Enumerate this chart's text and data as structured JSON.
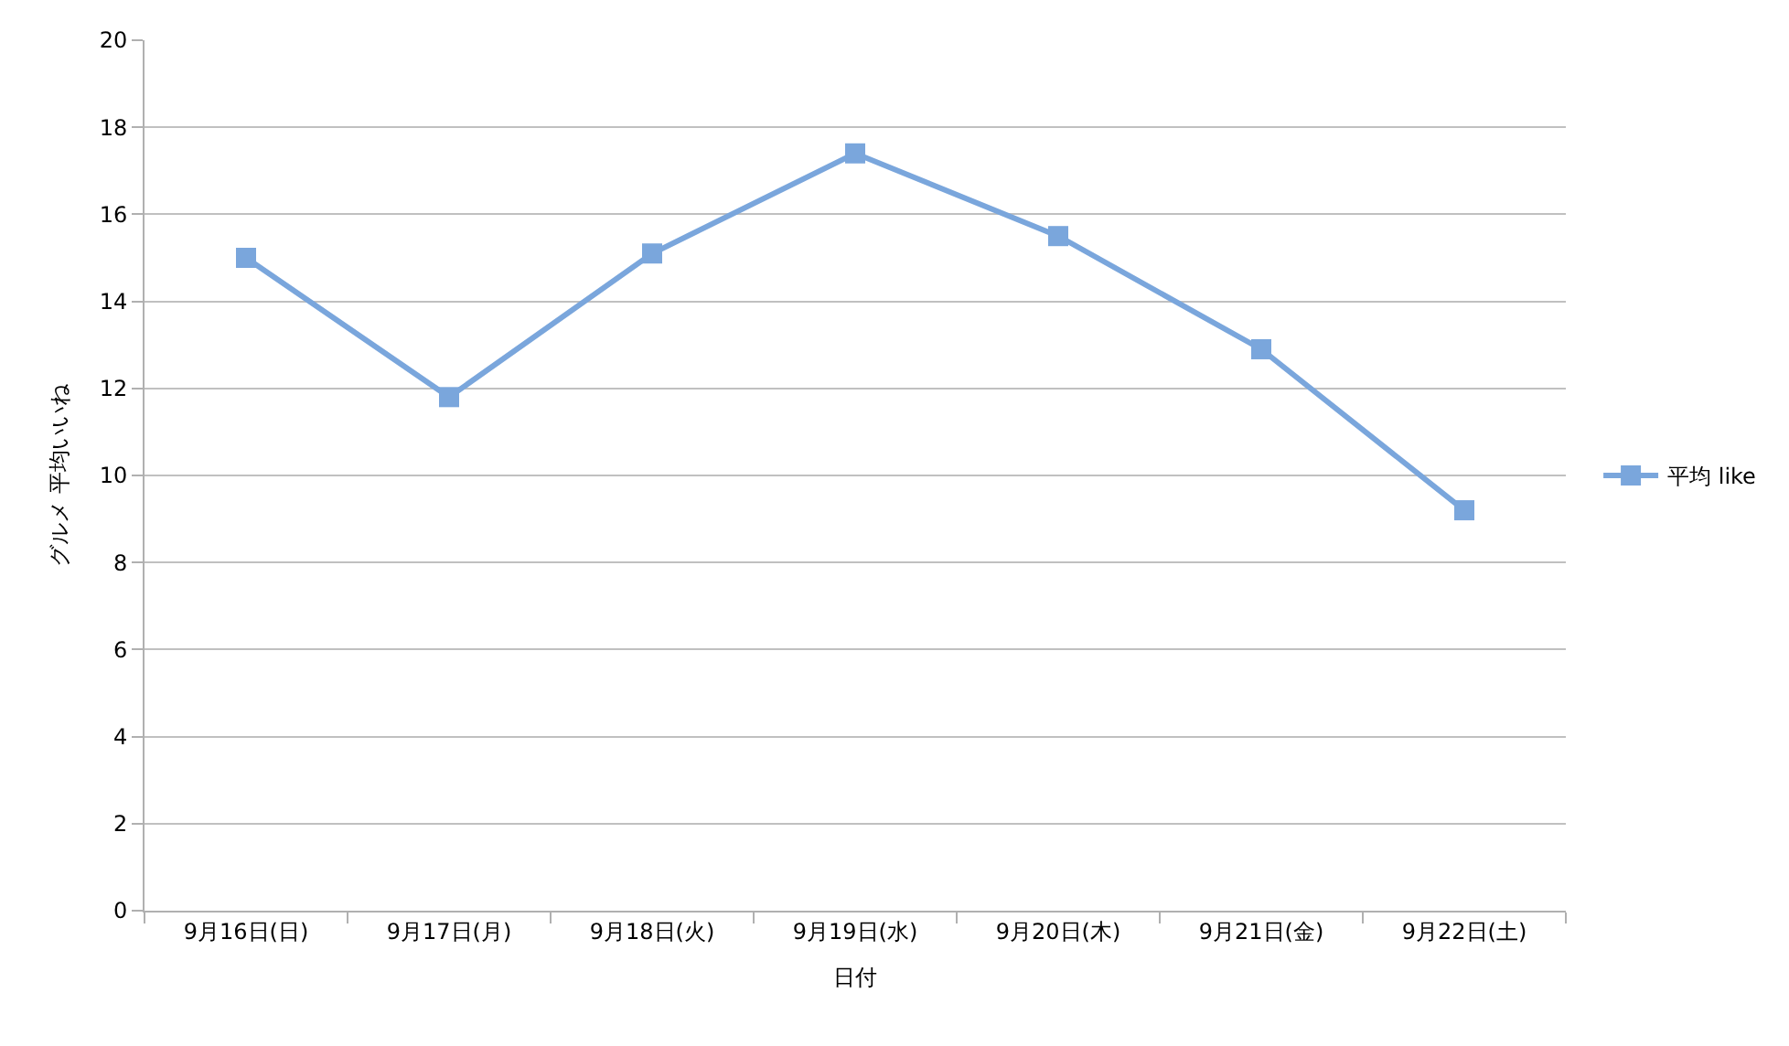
{
  "chart_data": {
    "type": "line",
    "xlabel": "日付",
    "ylabel": "グルメ 平均いいね",
    "categories": [
      "9月16日(日)",
      "9月17日(月)",
      "9月18日(火)",
      "9月19日(水)",
      "9月20日(木)",
      "9月21日(金)",
      "9月22日(土)"
    ],
    "series": [
      {
        "name": "平均 like",
        "color": "#7aa6dc",
        "values": [
          15.0,
          11.8,
          15.1,
          17.4,
          15.5,
          12.9,
          9.2
        ]
      }
    ],
    "ylim": [
      0,
      20
    ],
    "yticks": [
      0,
      2,
      4,
      6,
      8,
      10,
      12,
      14,
      16,
      18,
      20
    ],
    "grid": "y",
    "legend": "right",
    "marker": "square",
    "line_style": "solid"
  }
}
